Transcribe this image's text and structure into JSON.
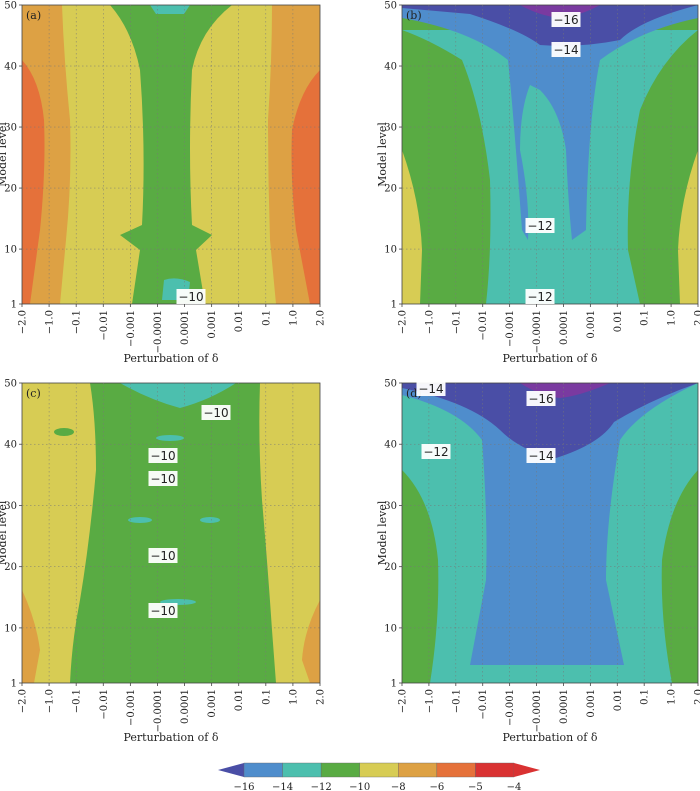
{
  "chart_data": {
    "type": "contour",
    "panels": [
      {
        "label": "(a)",
        "xlabel": "Perturbation of δ",
        "ylabel": "Model level",
        "ylim": [
          1,
          50
        ],
        "contour_labels": [
          "−10"
        ]
      },
      {
        "label": "(b)",
        "xlabel": "Perturbation of δ",
        "ylabel": "Model level",
        "ylim": [
          1,
          50
        ],
        "contour_labels": [
          "−16",
          "−14",
          "−12",
          "−12"
        ]
      },
      {
        "label": "(c)",
        "xlabel": "Perturbation of δ",
        "ylabel": "Model level",
        "ylim": [
          1,
          50
        ],
        "contour_labels": [
          "−10",
          "−10",
          "−10",
          "−10",
          "−10"
        ]
      },
      {
        "label": "(d)",
        "xlabel": "Perturbation of δ",
        "ylabel": "Model level",
        "ylim": [
          1,
          50
        ],
        "contour_labels": [
          "−14",
          "−16",
          "−12",
          "−14"
        ]
      }
    ],
    "x_ticks": [
      "−2.0",
      "−1.0",
      "−0.1",
      "−0.01",
      "−0.001",
      "−0.0001",
      "0.0001",
      "0.001",
      "0.01",
      "0.1",
      "1.0",
      "2.0"
    ],
    "y_ticks": [
      "1",
      "10",
      "20",
      "30",
      "40",
      "50"
    ],
    "colorbar": {
      "levels": [
        "−16",
        "−14",
        "−12",
        "−10",
        "−8",
        "−6",
        "−5",
        "−4"
      ],
      "colors": [
        "#4a4ea6",
        "#4f8dcc",
        "#4cbfae",
        "#59ab43",
        "#d7cc54",
        "#dda144",
        "#e5713a",
        "#d93232",
        "#7a3aa0"
      ]
    }
  }
}
